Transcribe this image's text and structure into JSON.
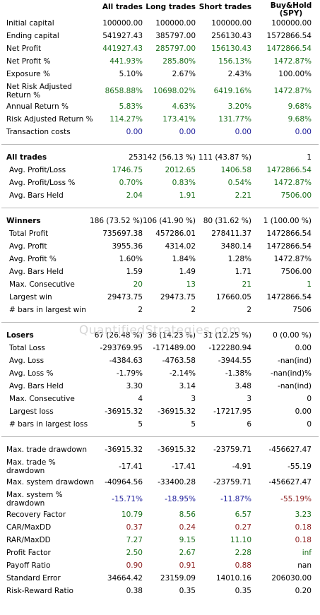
{
  "headers": [
    "All trades",
    "Long trades",
    "Short trades",
    "Buy&Hold (SPY)"
  ],
  "colors": {
    "green": "#1a6e1a",
    "red": "#8a1a1a",
    "blue": "#1a1a9a",
    "black": "#000000"
  },
  "watermark": "QuantifiedStrategies.com",
  "sections": [
    {
      "rows": [
        {
          "label": "Initial capital",
          "values": [
            "100000.00",
            "100000.00",
            "100000.00",
            "100000.00"
          ],
          "color": "k"
        },
        {
          "label": "Ending capital",
          "values": [
            "541927.43",
            "385797.00",
            "256130.43",
            "1572866.54"
          ],
          "color": "k"
        },
        {
          "label": "Net Profit",
          "values": [
            "441927.43",
            "285797.00",
            "156130.43",
            "1472866.54"
          ],
          "color": "g"
        },
        {
          "label": "Net Profit %",
          "values": [
            "441.93%",
            "285.80%",
            "156.13%",
            "1472.87%"
          ],
          "color": "g"
        },
        {
          "label": "Exposure %",
          "values": [
            "5.10%",
            "2.67%",
            "2.43%",
            "100.00%"
          ],
          "color": "k"
        },
        {
          "label": "Net Risk Adjusted Return %",
          "values": [
            "8658.88%",
            "10698.02%",
            "6419.16%",
            "1472.87%"
          ],
          "color": "g",
          "tall": true
        },
        {
          "label": "Annual Return %",
          "values": [
            "5.83%",
            "4.63%",
            "3.20%",
            "9.68%"
          ],
          "color": "g"
        },
        {
          "label": "Risk Adjusted Return %",
          "values": [
            "114.27%",
            "173.41%",
            "131.77%",
            "9.68%"
          ],
          "color": "g"
        },
        {
          "label": "Transaction costs",
          "values": [
            "0.00",
            "0.00",
            "0.00",
            "0.00"
          ],
          "color": "b"
        }
      ]
    },
    {
      "rows": [
        {
          "label": "All trades",
          "values": [
            "253",
            "142 (56.13 %)",
            "111 (43.87 %)",
            "1"
          ],
          "color": "k",
          "bold": true
        },
        {
          "label": "Avg. Profit/Loss",
          "values": [
            "1746.75",
            "2012.65",
            "1406.58",
            "1472866.54"
          ],
          "color": "g",
          "indent": true
        },
        {
          "label": "Avg. Profit/Loss %",
          "values": [
            "0.70%",
            "0.83%",
            "0.54%",
            "1472.87%"
          ],
          "color": "g",
          "indent": true
        },
        {
          "label": "Avg. Bars Held",
          "values": [
            "2.04",
            "1.91",
            "2.21",
            "7506.00"
          ],
          "color": "g",
          "indent": true
        }
      ]
    },
    {
      "rows": [
        {
          "label": "Winners",
          "values": [
            "186 (73.52 %)",
            "106 (41.90 %)",
            "80 (31.62 %)",
            "1 (100.00 %)"
          ],
          "color": "k",
          "bold": true
        },
        {
          "label": "Total Profit",
          "values": [
            "735697.38",
            "457286.01",
            "278411.37",
            "1472866.54"
          ],
          "color": "k",
          "indent": true
        },
        {
          "label": "Avg. Profit",
          "values": [
            "3955.36",
            "4314.02",
            "3480.14",
            "1472866.54"
          ],
          "color": "k",
          "indent": true
        },
        {
          "label": "Avg. Profit %",
          "values": [
            "1.60%",
            "1.84%",
            "1.28%",
            "1472.87%"
          ],
          "color": "k",
          "indent": true
        },
        {
          "label": "Avg. Bars Held",
          "values": [
            "1.59",
            "1.49",
            "1.71",
            "7506.00"
          ],
          "color": "k",
          "indent": true
        },
        {
          "label": "Max. Consecutive",
          "values": [
            "20",
            "13",
            "21",
            "1"
          ],
          "color": "g",
          "indent": true
        },
        {
          "label": "Largest win",
          "values": [
            "29473.75",
            "29473.75",
            "17660.05",
            "1472866.54"
          ],
          "color": "k",
          "indent": true
        },
        {
          "label": "# bars in largest win",
          "values": [
            "2",
            "2",
            "2",
            "7506"
          ],
          "color": "k",
          "indent": true
        }
      ]
    },
    {
      "rows": [
        {
          "label": "Losers",
          "values": [
            "67 (26.48 %)",
            "36 (14.23 %)",
            "31 (12.25 %)",
            "0 (0.00 %)"
          ],
          "color": "k",
          "bold": true
        },
        {
          "label": "Total Loss",
          "values": [
            "-293769.95",
            "-171489.00",
            "-122280.94",
            "0.00"
          ],
          "color": "k",
          "indent": true
        },
        {
          "label": "Avg. Loss",
          "values": [
            "-4384.63",
            "-4763.58",
            "-3944.55",
            "-nan(ind)"
          ],
          "color": "k",
          "indent": true
        },
        {
          "label": "Avg. Loss %",
          "values": [
            "-1.79%",
            "-2.14%",
            "-1.38%",
            "-nan(ind)%"
          ],
          "color": "k",
          "indent": true
        },
        {
          "label": "Avg. Bars Held",
          "values": [
            "3.30",
            "3.14",
            "3.48",
            "-nan(ind)"
          ],
          "color": "k",
          "indent": true
        },
        {
          "label": "Max. Consecutive",
          "values": [
            "4",
            "3",
            "3",
            "0"
          ],
          "color": "k",
          "indent": true
        },
        {
          "label": "Largest loss",
          "values": [
            "-36915.32",
            "-36915.32",
            "-17217.95",
            "0.00"
          ],
          "color": "k",
          "indent": true
        },
        {
          "label": "# bars in largest loss",
          "values": [
            "5",
            "5",
            "6",
            "0"
          ],
          "color": "k",
          "indent": true
        }
      ]
    },
    {
      "rows": [
        {
          "label": "Max. trade drawdown",
          "values": [
            "-36915.32",
            "-36915.32",
            "-23759.71",
            "-456627.47"
          ],
          "color": "k"
        },
        {
          "label": "Max. trade % drawdown",
          "values": [
            "-17.41",
            "-17.41",
            "-4.91",
            "-55.19"
          ],
          "color": "k",
          "tall": true
        },
        {
          "label": "Max. system drawdown",
          "values": [
            "-40964.56",
            "-33400.28",
            "-23759.71",
            "-456627.47"
          ],
          "color": "k"
        },
        {
          "label": "Max. system % drawdown",
          "values": [
            "-15.71%",
            "-18.95%",
            "-11.87%",
            "-55.19%"
          ],
          "color": "b",
          "tall": true,
          "lastColor": "r"
        },
        {
          "label": "Recovery Factor",
          "values": [
            "10.79",
            "8.56",
            "6.57",
            "3.23"
          ],
          "color": "g"
        },
        {
          "label": "CAR/MaxDD",
          "values": [
            "0.37",
            "0.24",
            "0.27",
            "0.18"
          ],
          "color": "r"
        },
        {
          "label": "RAR/MaxDD",
          "values": [
            "7.27",
            "9.15",
            "11.10",
            "0.18"
          ],
          "color": "g",
          "lastColor": "r"
        },
        {
          "label": "Profit Factor",
          "values": [
            "2.50",
            "2.67",
            "2.28",
            "inf"
          ],
          "color": "g"
        },
        {
          "label": "Payoff Ratio",
          "values": [
            "0.90",
            "0.91",
            "0.88",
            "nan"
          ],
          "color": "r",
          "lastColor": "k"
        },
        {
          "label": "Standard Error",
          "values": [
            "34664.42",
            "23159.09",
            "14010.16",
            "206030.00"
          ],
          "color": "k"
        },
        {
          "label": "Risk-Reward Ratio",
          "values": [
            "0.38",
            "0.35",
            "0.35",
            "0.20"
          ],
          "color": "k"
        }
      ]
    }
  ]
}
